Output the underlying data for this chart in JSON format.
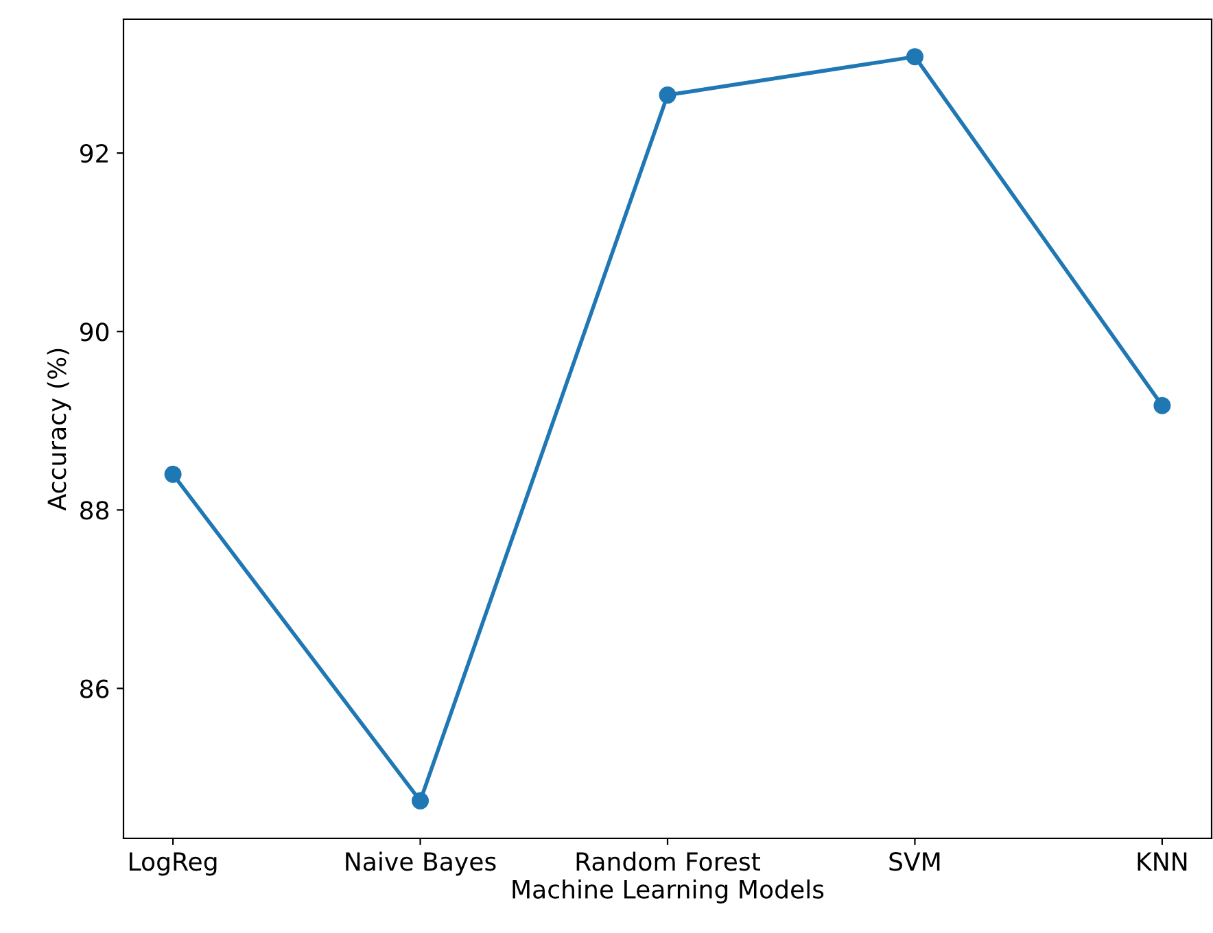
{
  "chart_data": {
    "type": "line",
    "xlabel": "Machine Learning Models",
    "ylabel": "Accuracy (%)",
    "categories": [
      "LogReg",
      "Naive Bayes",
      "Random Forest",
      "SVM",
      "KNN"
    ],
    "series": [
      {
        "color": "#1f77b4",
        "values": [
          88.4,
          84.74,
          92.65,
          93.08,
          89.17
        ]
      }
    ],
    "ylim": [
      84.32,
      93.5
    ],
    "yticks": [
      86,
      88,
      90,
      92
    ],
    "marker": "circle",
    "line_style": "solid",
    "grid": false,
    "legend": false
  }
}
